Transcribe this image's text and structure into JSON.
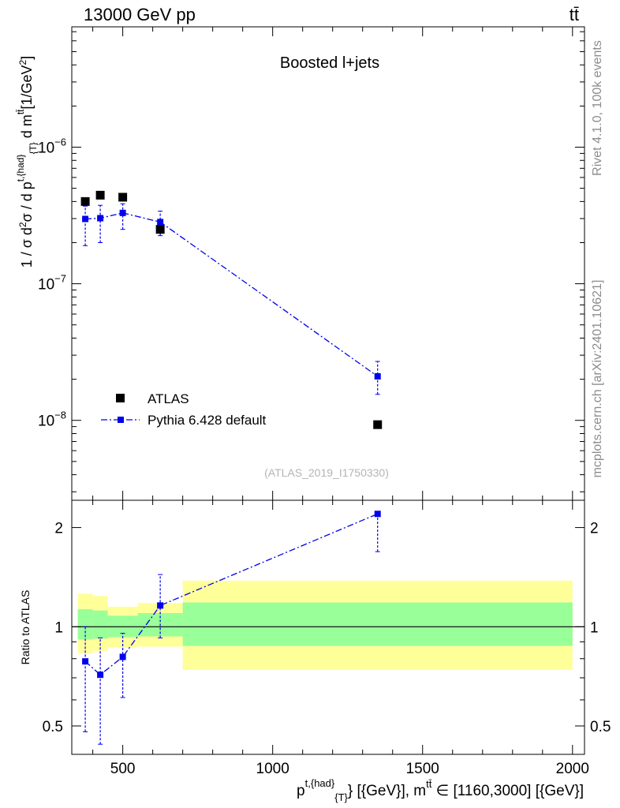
{
  "header": {
    "energy_label": "13000 GeV pp",
    "process_label": "tt̄"
  },
  "side_text": {
    "rivet": "Rivet 4.1.0,  100k events",
    "source": "mcplots.cern.ch [arXiv:2401.10621]"
  },
  "colors": {
    "atlas": "#000000",
    "pythia": "#0000ee",
    "band_inner": "#99ff99",
    "band_outer": "#ffff99"
  },
  "chart_data": [
    {
      "type": "scatter",
      "panel": "main",
      "title": "Boosted l+jets",
      "watermark": "(ATLAS_2019_I1750330)",
      "ylabel": "1 / σ d²σ / d p^{t,{had}}_{T} d m^{tt̄} [1/GeV²]",
      "yscale": "log",
      "xlim": [
        330,
        2040
      ],
      "ylim": [
        2.6e-09,
        7.6e-06
      ],
      "yticks": [
        {
          "value": 1e-08,
          "base": "10",
          "exp": "−8"
        },
        {
          "value": 1e-07,
          "base": "10",
          "exp": "−7"
        },
        {
          "value": 1e-06,
          "base": "10",
          "exp": "−6"
        }
      ],
      "legend": {
        "position": "lower-left",
        "entries": [
          "ATLAS",
          "Pythia 6.428 default"
        ]
      },
      "series": [
        {
          "name": "ATLAS",
          "marker": "square",
          "x": [
            375,
            425,
            500,
            625,
            1350
          ],
          "y": [
            4e-07,
            4.45e-07,
            4.3e-07,
            2.5e-07,
            9.3e-09
          ],
          "yerr_low": [
            4e-07,
            4.45e-07,
            4.3e-07,
            2.3e-07,
            9.3e-09
          ],
          "yerr_high": [
            4e-07,
            4.45e-07,
            4.3e-07,
            2.7e-07,
            9.3e-09
          ]
        },
        {
          "name": "Pythia 6.428 default",
          "marker": "small-square-dashdot-line",
          "x": [
            375,
            425,
            500,
            625,
            1350
          ],
          "y": [
            2.98e-07,
            3.02e-07,
            3.3e-07,
            2.83e-07,
            2.1e-08
          ],
          "yerr_low": [
            1.9e-07,
            2e-07,
            2.5e-07,
            2.25e-07,
            1.55e-08
          ],
          "yerr_high": [
            3.7e-07,
            3.75e-07,
            3.85e-07,
            3.4e-07,
            2.7e-08
          ]
        }
      ]
    },
    {
      "type": "scatter",
      "panel": "ratio",
      "ylabel": "Ratio to ATLAS",
      "xlabel": "p^{t,{had}}_{T} [{GeV}], m^{tt̄} ∈ [1160,3000] [{GeV}]",
      "yscale": "log",
      "xlim": [
        330,
        2040
      ],
      "ylim": [
        0.41,
        2.42
      ],
      "xticks": [
        500,
        1000,
        1500,
        2000
      ],
      "ytick_labels": [
        {
          "value": 0.5,
          "label": "0.5"
        },
        {
          "value": 1,
          "label": "1"
        },
        {
          "value": 2,
          "label": "2"
        }
      ],
      "reference_line": 1,
      "bands": [
        {
          "x0": 350,
          "x1": 400,
          "inner": [
            0.915,
            1.13
          ],
          "outer": [
            0.83,
            1.26
          ]
        },
        {
          "x0": 400,
          "x1": 450,
          "inner": [
            0.92,
            1.12
          ],
          "outer": [
            0.845,
            1.24
          ]
        },
        {
          "x0": 450,
          "x1": 550,
          "inner": [
            0.93,
            1.08
          ],
          "outer": [
            0.865,
            1.15
          ]
        },
        {
          "x0": 550,
          "x1": 700,
          "inner": [
            0.935,
            1.1
          ],
          "outer": [
            0.87,
            1.18
          ]
        },
        {
          "x0": 700,
          "x1": 2000,
          "inner": [
            0.875,
            1.185
          ],
          "outer": [
            0.74,
            1.38
          ]
        }
      ],
      "series": [
        {
          "name": "Pythia 6.428 default",
          "x": [
            375,
            425,
            500,
            625,
            1350
          ],
          "y": [
            0.785,
            0.715,
            0.81,
            1.16,
            2.2
          ],
          "yerr_low": [
            0.48,
            0.44,
            0.61,
            0.925,
            1.69
          ],
          "yerr_high": [
            1.0,
            0.925,
            0.955,
            1.44,
            2.22
          ]
        }
      ]
    }
  ]
}
